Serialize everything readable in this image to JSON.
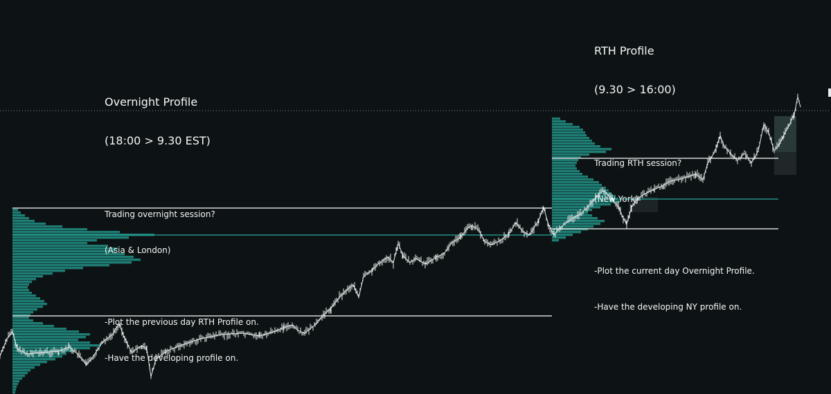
{
  "chart_data": {
    "type": "line",
    "title": "",
    "xlabel": "",
    "ylabel": "",
    "grid": false,
    "legend": "none",
    "ylim": [
      0,
      570
    ],
    "colors": {
      "background": "#0d1314",
      "candles": "#e8ecec",
      "profile": "#26a69a",
      "poc_line": "#26a69a",
      "level_line": "#ffffff",
      "dotted_line": "#8a9090"
    },
    "price_series": [
      [
        0,
        515
      ],
      [
        10,
        490
      ],
      [
        18,
        480
      ],
      [
        25,
        505
      ],
      [
        40,
        512
      ],
      [
        60,
        510
      ],
      [
        85,
        508
      ],
      [
        100,
        502
      ],
      [
        112,
        512
      ],
      [
        125,
        528
      ],
      [
        135,
        515
      ],
      [
        148,
        495
      ],
      [
        162,
        484
      ],
      [
        172,
        468
      ],
      [
        178,
        485
      ],
      [
        190,
        510
      ],
      [
        205,
        500
      ],
      [
        212,
        505
      ],
      [
        218,
        545
      ],
      [
        225,
        520
      ],
      [
        240,
        508
      ],
      [
        260,
        500
      ],
      [
        290,
        490
      ],
      [
        320,
        484
      ],
      [
        350,
        482
      ],
      [
        375,
        486
      ],
      [
        395,
        480
      ],
      [
        410,
        474
      ],
      [
        422,
        470
      ],
      [
        430,
        478
      ],
      [
        440,
        482
      ],
      [
        455,
        470
      ],
      [
        465,
        458
      ],
      [
        478,
        446
      ],
      [
        490,
        430
      ],
      [
        500,
        420
      ],
      [
        510,
        412
      ],
      [
        518,
        430
      ],
      [
        525,
        400
      ],
      [
        538,
        390
      ],
      [
        548,
        380
      ],
      [
        560,
        372
      ],
      [
        568,
        380
      ],
      [
        575,
        352
      ],
      [
        582,
        370
      ],
      [
        592,
        380
      ],
      [
        600,
        374
      ],
      [
        615,
        382
      ],
      [
        630,
        372
      ],
      [
        642,
        366
      ],
      [
        652,
        352
      ],
      [
        665,
        343
      ],
      [
        675,
        330
      ],
      [
        682,
        326
      ],
      [
        692,
        334
      ],
      [
        700,
        350
      ],
      [
        710,
        354
      ],
      [
        722,
        348
      ],
      [
        735,
        338
      ],
      [
        745,
        322
      ],
      [
        755,
        335
      ],
      [
        765,
        340
      ],
      [
        778,
        318
      ],
      [
        785,
        300
      ],
      [
        792,
        325
      ],
      [
        800,
        340
      ],
      [
        808,
        330
      ],
      [
        818,
        322
      ],
      [
        828,
        315
      ],
      [
        838,
        310
      ],
      [
        848,
        300
      ],
      [
        858,
        288
      ],
      [
        866,
        280
      ],
      [
        872,
        276
      ],
      [
        880,
        284
      ],
      [
        887,
        292
      ],
      [
        894,
        300
      ],
      [
        900,
        316
      ],
      [
        905,
        324
      ],
      [
        912,
        300
      ],
      [
        920,
        288
      ],
      [
        932,
        280
      ],
      [
        945,
        274
      ],
      [
        958,
        268
      ],
      [
        968,
        262
      ],
      [
        980,
        260
      ],
      [
        992,
        256
      ],
      [
        1005,
        252
      ],
      [
        1015,
        260
      ],
      [
        1022,
        236
      ],
      [
        1032,
        220
      ],
      [
        1040,
        196
      ],
      [
        1046,
        212
      ],
      [
        1055,
        222
      ],
      [
        1065,
        232
      ],
      [
        1075,
        222
      ],
      [
        1085,
        236
      ],
      [
        1095,
        218
      ],
      [
        1103,
        180
      ],
      [
        1110,
        192
      ],
      [
        1118,
        218
      ],
      [
        1125,
        210
      ],
      [
        1132,
        195
      ],
      [
        1140,
        180
      ],
      [
        1147,
        165
      ],
      [
        1152,
        140
      ],
      [
        1156,
        155
      ]
    ],
    "overnight_profile": [
      [
        302,
        8
      ],
      [
        306,
        12
      ],
      [
        310,
        18
      ],
      [
        314,
        24
      ],
      [
        318,
        32
      ],
      [
        322,
        48
      ],
      [
        326,
        72
      ],
      [
        330,
        108
      ],
      [
        334,
        155
      ],
      [
        338,
        205
      ],
      [
        342,
        168
      ],
      [
        346,
        122
      ],
      [
        350,
        108
      ],
      [
        354,
        138
      ],
      [
        358,
        152
      ],
      [
        362,
        148
      ],
      [
        366,
        162
      ],
      [
        370,
        175
      ],
      [
        374,
        185
      ],
      [
        378,
        172
      ],
      [
        382,
        140
      ],
      [
        386,
        102
      ],
      [
        390,
        76
      ],
      [
        394,
        58
      ],
      [
        398,
        44
      ],
      [
        402,
        34
      ],
      [
        406,
        28
      ],
      [
        410,
        24
      ],
      [
        414,
        22
      ],
      [
        418,
        24
      ],
      [
        422,
        28
      ],
      [
        426,
        34
      ],
      [
        430,
        40
      ],
      [
        434,
        46
      ],
      [
        438,
        50
      ],
      [
        442,
        44
      ],
      [
        446,
        36
      ],
      [
        450,
        30
      ],
      [
        454,
        26
      ],
      [
        458,
        24
      ],
      [
        462,
        30
      ],
      [
        466,
        44
      ],
      [
        470,
        60
      ],
      [
        474,
        78
      ],
      [
        478,
        96
      ],
      [
        482,
        112
      ],
      [
        486,
        106
      ],
      [
        490,
        95
      ],
      [
        494,
        112
      ],
      [
        498,
        128
      ],
      [
        502,
        112
      ],
      [
        506,
        90
      ],
      [
        510,
        78
      ],
      [
        514,
        72
      ],
      [
        518,
        62
      ],
      [
        522,
        50
      ],
      [
        526,
        40
      ],
      [
        530,
        32
      ],
      [
        534,
        26
      ],
      [
        538,
        22
      ],
      [
        542,
        18
      ],
      [
        546,
        14
      ],
      [
        550,
        10
      ],
      [
        554,
        8
      ],
      [
        558,
        6
      ],
      [
        562,
        5
      ],
      [
        566,
        4
      ]
    ],
    "rth_profile": [
      [
        170,
        12
      ],
      [
        174,
        20
      ],
      [
        178,
        30
      ],
      [
        182,
        40
      ],
      [
        186,
        45
      ],
      [
        190,
        48
      ],
      [
        194,
        50
      ],
      [
        198,
        54
      ],
      [
        202,
        58
      ],
      [
        206,
        62
      ],
      [
        210,
        70
      ],
      [
        214,
        86
      ],
      [
        218,
        78
      ],
      [
        222,
        54
      ],
      [
        226,
        42
      ],
      [
        230,
        38
      ],
      [
        234,
        36
      ],
      [
        238,
        34
      ],
      [
        242,
        36
      ],
      [
        246,
        40
      ],
      [
        250,
        44
      ],
      [
        254,
        52
      ],
      [
        258,
        60
      ],
      [
        262,
        68
      ],
      [
        266,
        72
      ],
      [
        270,
        78
      ],
      [
        274,
        82
      ],
      [
        278,
        86
      ],
      [
        282,
        92
      ],
      [
        286,
        95
      ],
      [
        290,
        98
      ],
      [
        294,
        85
      ],
      [
        298,
        70
      ],
      [
        302,
        58
      ],
      [
        306,
        52
      ],
      [
        310,
        58
      ],
      [
        314,
        66
      ],
      [
        318,
        76
      ],
      [
        322,
        70
      ],
      [
        326,
        60
      ],
      [
        330,
        52
      ],
      [
        334,
        42
      ],
      [
        338,
        30
      ],
      [
        342,
        20
      ],
      [
        346,
        10
      ]
    ],
    "levels": [
      {
        "x_from": 18,
        "x_to": 797,
        "y": 301,
        "color": "#ffffff"
      },
      {
        "x_from": 18,
        "x_to": 797,
        "y": 340,
        "color": "#26a69a"
      },
      {
        "x_from": 18,
        "x_to": 797,
        "y": 457,
        "color": "#ffffff"
      },
      {
        "x_from": 797,
        "x_to": 1124,
        "y": 229,
        "color": "#ffffff"
      },
      {
        "x_from": 797,
        "x_to": 1124,
        "y": 288,
        "color": "#26a69a"
      },
      {
        "x_from": 797,
        "x_to": 1124,
        "y": 331,
        "color": "#ffffff"
      }
    ],
    "dotted_level": 160
  },
  "annotations": {
    "overnight": {
      "title": "Overnight Profile",
      "subtitle": "(18:00 > 9.30 EST)",
      "question": "Trading overnight session?",
      "region": "(Asia & London)",
      "step1": "-Plot the previous day RTH Profile on.",
      "step2": "-Have the developing profile on."
    },
    "rth": {
      "title": "RTH Profile",
      "subtitle": "(9.30 > 16:00)",
      "question": "Trading RTH session?",
      "region": "(New York)",
      "step1": "-Plot the current day Overnight Profile.",
      "step2": "-Have the developing NY profile on."
    }
  }
}
